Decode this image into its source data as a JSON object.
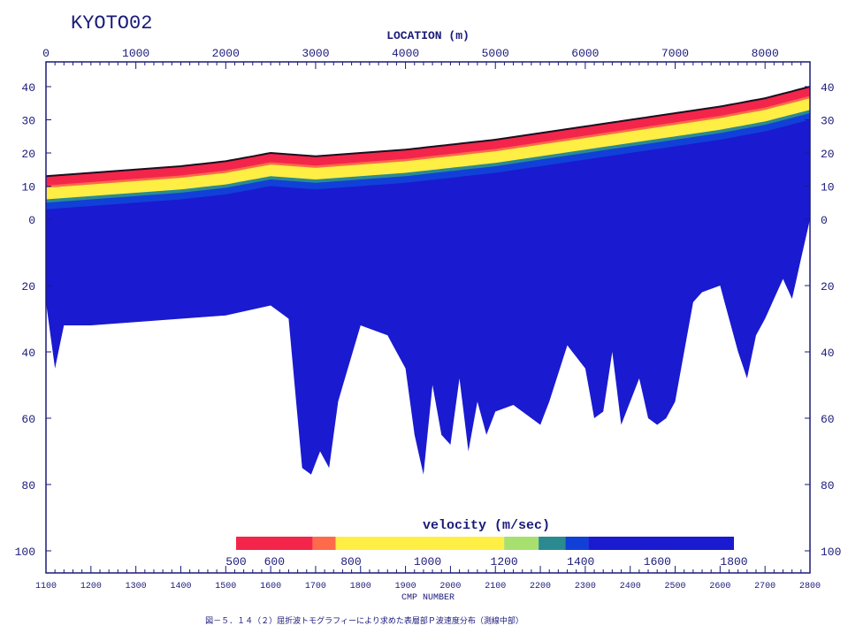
{
  "title": "KYOTO02",
  "top_axis_label": "LOCATION (m)",
  "bottom_axis_label": "CMP NUMBER",
  "caption": "図－５．１４（２）屈折波トモグラフィーにより求めた表層部Ｐ波速度分布（測線中部）",
  "colors": {
    "axis": "#1a1a7a",
    "v500": "#f4254a",
    "v700": "#ff6a4a",
    "v800": "#ffee44",
    "v1200": "#a8e070",
    "v1300": "#2b8a90",
    "v1400": "#1040d8",
    "v1800": "#1a1ad0"
  },
  "chart_data": {
    "type": "heatmap",
    "title": "KYOTO02",
    "x_top": {
      "label": "LOCATION (m)",
      "range": [
        0,
        8500
      ],
      "ticks": [
        0,
        1000,
        2000,
        3000,
        4000,
        5000,
        6000,
        7000,
        8000
      ]
    },
    "x_bottom": {
      "label": "CMP NUMBER",
      "range": [
        1100,
        2800
      ],
      "ticks": [
        1100,
        1200,
        1300,
        1400,
        1500,
        1600,
        1700,
        1800,
        1900,
        2000,
        2100,
        2200,
        2300,
        2400,
        2500,
        2600,
        2700,
        2800
      ]
    },
    "y_upper": {
      "ticks": [
        40,
        30,
        20,
        10,
        0
      ],
      "range": [
        0,
        40
      ]
    },
    "y_lower": {
      "ticks": [
        0,
        20,
        40,
        60,
        80,
        100
      ],
      "range": [
        0,
        100
      ]
    },
    "surface_elevation": {
      "x": [
        0,
        500,
        1000,
        1500,
        2000,
        2500,
        3000,
        3500,
        4000,
        4500,
        5000,
        5500,
        6000,
        6500,
        7000,
        7500,
        8000,
        8500
      ],
      "y": [
        13,
        14,
        15,
        16,
        17.5,
        20,
        19,
        20,
        21,
        22.5,
        24,
        26,
        28,
        30,
        32,
        34,
        36.5,
        40
      ]
    },
    "model_bottom_depth": {
      "x": [
        0,
        100,
        200,
        500,
        1000,
        1500,
        2000,
        2500,
        2700,
        2850,
        2950,
        3050,
        3150,
        3250,
        3500,
        3800,
        4000,
        4100,
        4200,
        4300,
        4400,
        4500,
        4600,
        4700,
        4800,
        4900,
        5000,
        5200,
        5400,
        5500,
        5600,
        5800,
        6000,
        6100,
        6200,
        6300,
        6400,
        6500,
        6600,
        6700,
        6800,
        6900,
        7000,
        7100,
        7200,
        7300,
        7500,
        7700,
        7800,
        7900,
        8000,
        8200,
        8300,
        8400,
        8500
      ],
      "y": [
        25,
        45,
        32,
        32,
        31,
        30,
        29,
        26,
        30,
        75,
        77,
        70,
        75,
        55,
        32,
        35,
        45,
        65,
        77,
        50,
        65,
        68,
        48,
        70,
        55,
        65,
        58,
        56,
        60,
        62,
        55,
        38,
        45,
        60,
        58,
        40,
        62,
        55,
        48,
        60,
        62,
        60,
        55,
        40,
        25,
        22,
        20,
        40,
        48,
        35,
        30,
        18,
        24,
        12,
        0
      ]
    },
    "colorbar": {
      "label": "velocity (m/sec)",
      "ticks": [
        500,
        600,
        800,
        1000,
        1200,
        1400,
        1600,
        1800
      ],
      "range": [
        500,
        1800
      ]
    }
  }
}
